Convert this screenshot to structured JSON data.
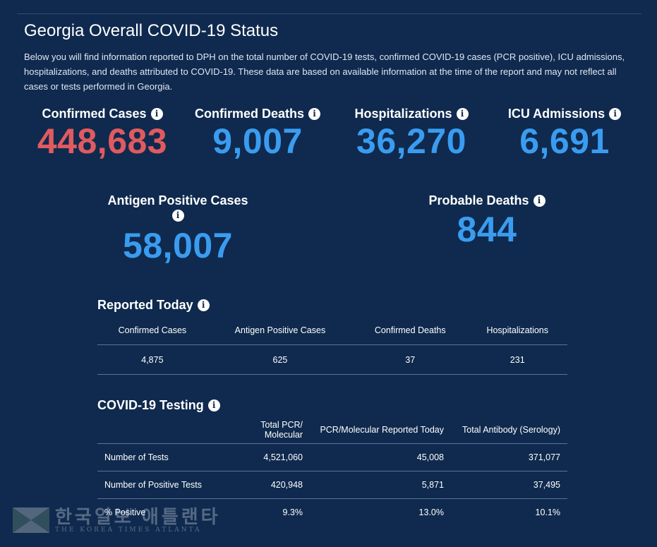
{
  "title": "Georgia Overall COVID-19 Status",
  "description": "Below you will find information reported to DPH on the total number of COVID-19 tests, confirmed COVID-19 cases (PCR positive), ICU admissions, hospitalizations, and deaths attributed to COVID-19. These data are based on available information at the time of the report and may not reflect all cases or tests performed in Georgia.",
  "colors": {
    "background": "#0f2a4e",
    "red": "#e05a5f",
    "blue": "#3a9cf0"
  },
  "stats": {
    "confirmed_cases": {
      "label": "Confirmed Cases",
      "value": "448,683"
    },
    "confirmed_deaths": {
      "label": "Confirmed Deaths",
      "value": "9,007"
    },
    "hospitalizations": {
      "label": "Hospitalizations",
      "value": "36,270"
    },
    "icu_admissions": {
      "label": "ICU Admissions",
      "value": "6,691"
    },
    "antigen_positive": {
      "label": "Antigen Positive Cases",
      "value": "58,007"
    },
    "probable_deaths": {
      "label": "Probable Deaths",
      "value": "844"
    }
  },
  "reported_today": {
    "title": "Reported Today",
    "headers": [
      "Confirmed Cases",
      "Antigen Positive Cases",
      "Confirmed Deaths",
      "Hospitalizations"
    ],
    "values": [
      "4,875",
      "625",
      "37",
      "231"
    ]
  },
  "testing": {
    "title": "COVID-19 Testing",
    "headers": [
      "",
      "Total PCR/ Molecular",
      "PCR/Molecular Reported Today",
      "Total Antibody (Serology)"
    ],
    "rows": [
      [
        "Number of Tests",
        "4,521,060",
        "45,008",
        "371,077"
      ],
      [
        "Number of Positive Tests",
        "420,948",
        "5,871",
        "37,495"
      ],
      [
        "% Positive",
        "9.3%",
        "13.0%",
        "10.1%"
      ]
    ]
  },
  "info_icon_glyph": "i",
  "watermark": {
    "korean": "한국일보 애틀랜타",
    "english": "THE KOREA TIMES ATLANTA"
  }
}
